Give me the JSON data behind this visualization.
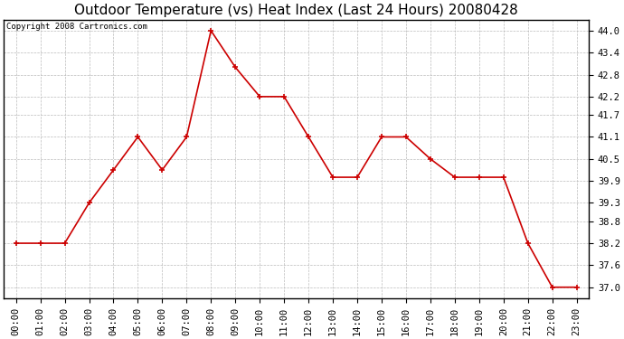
{
  "title": "Outdoor Temperature (vs) Heat Index (Last 24 Hours) 20080428",
  "copyright": "Copyright 2008 Cartronics.com",
  "x_labels": [
    "00:00",
    "01:00",
    "02:00",
    "03:00",
    "04:00",
    "05:00",
    "06:00",
    "07:00",
    "08:00",
    "09:00",
    "10:00",
    "11:00",
    "12:00",
    "13:00",
    "14:00",
    "15:00",
    "16:00",
    "17:00",
    "18:00",
    "19:00",
    "20:00",
    "21:00",
    "22:00",
    "23:00"
  ],
  "y_values": [
    38.2,
    38.2,
    38.2,
    39.3,
    40.2,
    41.1,
    40.2,
    41.1,
    44.0,
    43.0,
    42.2,
    42.2,
    41.1,
    40.0,
    40.0,
    41.1,
    41.1,
    40.5,
    40.0,
    40.0,
    40.0,
    38.2,
    37.0,
    37.0
  ],
  "line_color": "#cc0000",
  "marker": "+",
  "marker_size": 4,
  "marker_color": "#cc0000",
  "background_color": "#ffffff",
  "grid_color": "#bbbbbb",
  "ylim_min": 36.7,
  "ylim_max": 44.3,
  "yticks": [
    37.0,
    37.6,
    38.2,
    38.8,
    39.3,
    39.9,
    40.5,
    41.1,
    41.7,
    42.2,
    42.8,
    43.4,
    44.0
  ],
  "title_fontsize": 11,
  "tick_fontsize": 7.5,
  "copyright_fontsize": 6.5
}
